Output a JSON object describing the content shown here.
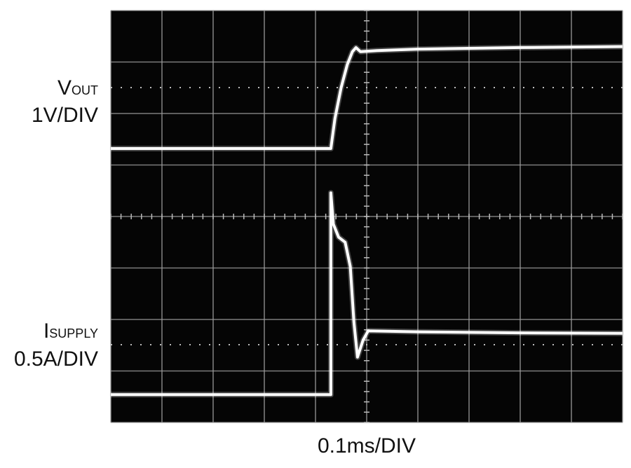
{
  "chart_data": {
    "type": "line",
    "x_label": "0.1ms/DIV",
    "y_labels": [
      {
        "symbol": "V",
        "subscript": "OUT",
        "scale": "1V/DIV"
      },
      {
        "symbol": "I",
        "subscript": "SUPPLY",
        "scale": "0.5A/DIV"
      }
    ],
    "xlim": [
      0,
      10
    ],
    "ylim": [
      0,
      8
    ],
    "xticks": [
      0,
      1,
      2,
      3,
      4,
      5,
      6,
      7,
      8,
      9,
      10
    ],
    "yticks": [
      0,
      1,
      2,
      3,
      4,
      5,
      6,
      7,
      8
    ],
    "grid": true,
    "series": [
      {
        "color": "#ffffff",
        "x": [
          0,
          4.3,
          4.38,
          4.5,
          4.62,
          4.72,
          4.79,
          4.88,
          5.2,
          6,
          8,
          10
        ],
        "values": [
          5.32,
          5.32,
          5.9,
          6.5,
          6.95,
          7.2,
          7.28,
          7.2,
          7.22,
          7.25,
          7.28,
          7.3
        ]
      },
      {
        "color": "#ffffff",
        "x": [
          0,
          4.3,
          4.3,
          4.35,
          4.45,
          4.58,
          4.68,
          4.75,
          4.82,
          4.93,
          5.03,
          6,
          8,
          10
        ],
        "values": [
          0.54,
          0.54,
          4.46,
          3.85,
          3.6,
          3.5,
          3.03,
          1.95,
          1.27,
          1.6,
          1.78,
          1.76,
          1.74,
          1.73
        ]
      }
    ]
  }
}
